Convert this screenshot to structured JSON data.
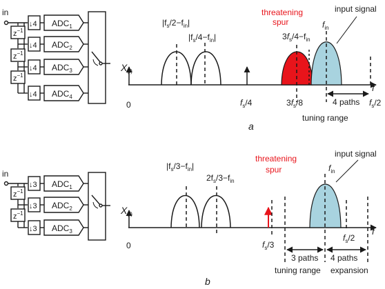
{
  "colors": {
    "spur": "#e8141b",
    "signal_fill": "#a8d3df",
    "ink": "#1a1a1a"
  },
  "panel_a": {
    "letter": "a",
    "circuit": {
      "input": "in",
      "delay": "z",
      "delay_exp": "−1",
      "decimation": "↓4",
      "adc_base": "ADC",
      "adc_subs": [
        "1",
        "2",
        "3",
        "4"
      ]
    },
    "axis": {
      "ylabel": "X",
      "ylabel_sub": "(f)",
      "xlabel": "f",
      "origin": "0",
      "tick_fs4": "/4",
      "tick_3fs8_pre": "3",
      "tick_3fs8_post": "/8",
      "tick_fs2": "/2"
    },
    "labels": {
      "img1": "|f",
      "img1_tail": "/2−f",
      "img1_end": "|",
      "img2": "|f",
      "img2_tail": "/4−f",
      "img2_end": "|",
      "spur_line1": "threatening",
      "spur_line2": "spur",
      "spur_freq_pre": "3",
      "spur_freq_tail": "/4−f",
      "fin": "f",
      "input_signal": "input signal",
      "paths": "4 paths",
      "tuning_range": "tuning range"
    }
  },
  "panel_b": {
    "letter": "b",
    "circuit": {
      "input": "in",
      "delay": "z",
      "delay_exp": "−1",
      "decimation": "↓3",
      "adc_base": "ADC",
      "adc_subs": [
        "1",
        "2",
        "3"
      ]
    },
    "axis": {
      "ylabel": "X",
      "ylabel_sub": "(f)",
      "xlabel": "f",
      "origin": "0",
      "tick_fs3": "/3",
      "tick_fs2": "/2"
    },
    "labels": {
      "img1": "|f",
      "img1_tail": "/3−f",
      "img1_end": "|",
      "img2_pre": "2f",
      "img2_tail": "/3−f",
      "spur_line1": "threatening",
      "spur_line2": "spur",
      "fin": "f",
      "input_signal": "input signal",
      "paths3": "3 paths",
      "paths4": "4 paths",
      "tuning_range": "tuning range",
      "expansion": "expansion"
    }
  },
  "subscripts": {
    "s": "s",
    "in": "in"
  }
}
